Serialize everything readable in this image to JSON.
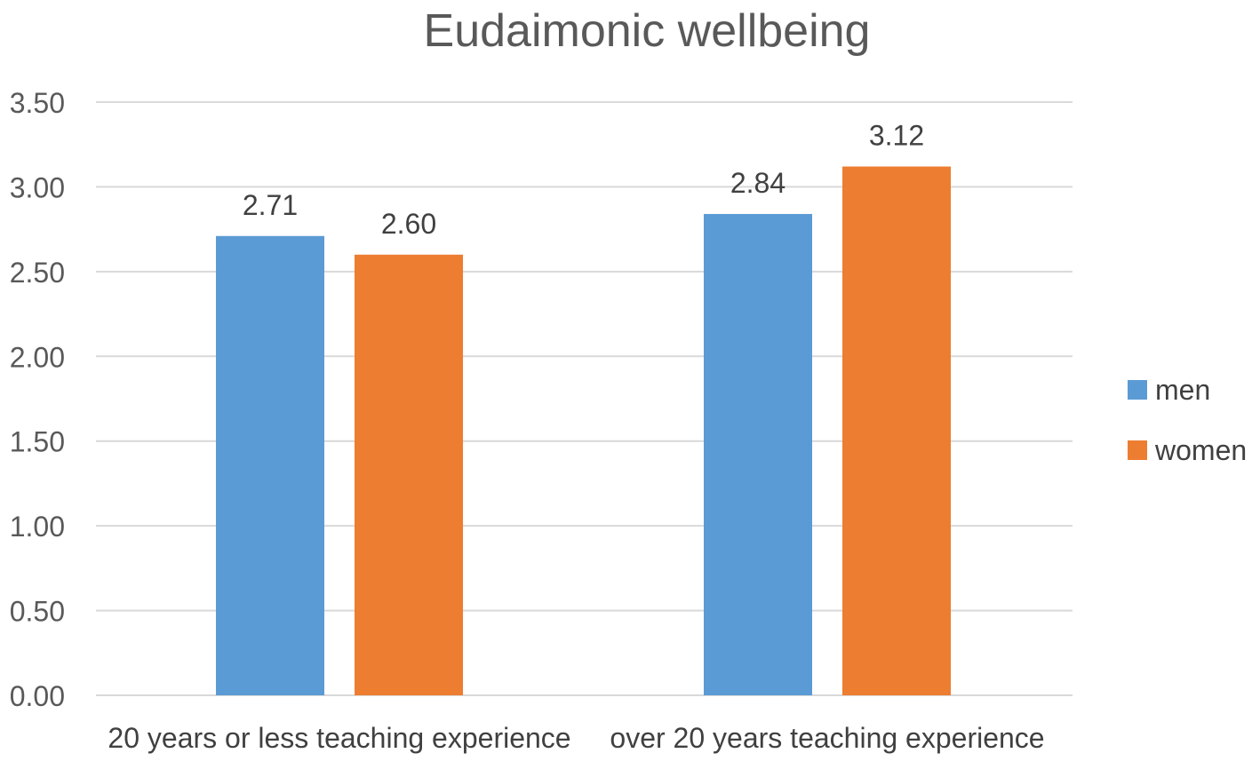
{
  "chart_data": {
    "type": "bar",
    "title": "Eudaimonic wellbeing",
    "xlabel": "",
    "ylabel": "",
    "categories": [
      "20 years or less teaching experience",
      "over 20 years teaching experience"
    ],
    "series": [
      {
        "name": "men",
        "color": "#5B9BD5",
        "values": [
          2.71,
          2.84
        ],
        "labels": [
          "2.71",
          "2.84"
        ]
      },
      {
        "name": "women",
        "color": "#ED7D31",
        "values": [
          2.6,
          3.12
        ],
        "labels": [
          "2.60",
          "3.12"
        ]
      }
    ],
    "ylim": [
      0,
      3.5
    ],
    "yticks": [
      "0.00",
      "0.50",
      "1.00",
      "1.50",
      "2.00",
      "2.50",
      "3.00",
      "3.50"
    ],
    "grid": true,
    "legend": "right"
  }
}
